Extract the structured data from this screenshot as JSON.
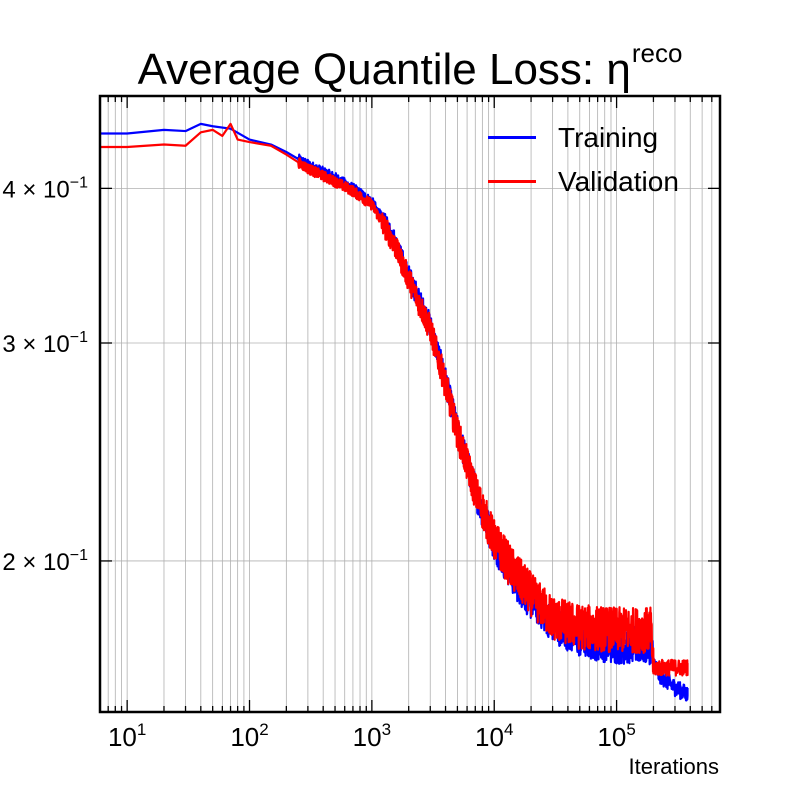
{
  "chart_data": {
    "type": "line",
    "title_main": "Average Quantile Loss: η",
    "title_sup": "reco",
    "xlabel": "Iterations",
    "ylabel": "",
    "xscale": "log",
    "yscale": "log",
    "xlim": [
      6,
      700000
    ],
    "ylim": [
      0.151,
      0.475
    ],
    "x_ticks": [
      {
        "value": 10,
        "label_base": "10",
        "label_exp": "1"
      },
      {
        "value": 100,
        "label_base": "10",
        "label_exp": "2"
      },
      {
        "value": 1000,
        "label_base": "10",
        "label_exp": "3"
      },
      {
        "value": 10000,
        "label_base": "10",
        "label_exp": "4"
      },
      {
        "value": 100000,
        "label_base": "10",
        "label_exp": "5"
      }
    ],
    "y_ticks": [
      {
        "value": 0.2,
        "label_mant": "2 × 10",
        "label_exp": "−1"
      },
      {
        "value": 0.3,
        "label_mant": "3 × 10",
        "label_exp": "−1"
      },
      {
        "value": 0.4,
        "label_mant": "4 × 10",
        "label_exp": "−1"
      }
    ],
    "grid": true,
    "legend_position": "top-right",
    "series": [
      {
        "name": "Training",
        "color": "#0000ff",
        "noise_regions": [
          {
            "from": 250,
            "to": 1200,
            "amp": 0.004
          },
          {
            "from": 1200,
            "to": 20000,
            "amp": 0.007
          },
          {
            "from": 20000,
            "to": 200000,
            "amp": 0.006
          },
          {
            "from": 200000,
            "to": 380000,
            "amp": 0.0025
          }
        ],
        "points": [
          [
            6,
            0.443
          ],
          [
            10,
            0.443
          ],
          [
            20,
            0.446
          ],
          [
            30,
            0.445
          ],
          [
            40,
            0.451
          ],
          [
            50,
            0.449
          ],
          [
            70,
            0.447
          ],
          [
            100,
            0.438
          ],
          [
            150,
            0.434
          ],
          [
            200,
            0.428
          ],
          [
            300,
            0.418
          ],
          [
            500,
            0.408
          ],
          [
            700,
            0.4
          ],
          [
            1000,
            0.39
          ],
          [
            1500,
            0.365
          ],
          [
            2000,
            0.34
          ],
          [
            3000,
            0.31
          ],
          [
            4000,
            0.28
          ],
          [
            5000,
            0.255
          ],
          [
            7000,
            0.228
          ],
          [
            10000,
            0.207
          ],
          [
            15000,
            0.193
          ],
          [
            20000,
            0.186
          ],
          [
            30000,
            0.178
          ],
          [
            50000,
            0.173
          ],
          [
            100000,
            0.171
          ],
          [
            190000,
            0.171
          ],
          [
            200000,
            0.166
          ],
          [
            220000,
            0.162
          ],
          [
            300000,
            0.158
          ],
          [
            380000,
            0.156
          ]
        ]
      },
      {
        "name": "Validation",
        "color": "#ff0000",
        "noise_regions": [
          {
            "from": 250,
            "to": 1200,
            "amp": 0.004
          },
          {
            "from": 1200,
            "to": 20000,
            "amp": 0.008
          },
          {
            "from": 20000,
            "to": 200000,
            "amp": 0.0075
          },
          {
            "from": 200000,
            "to": 380000,
            "amp": 0.0025
          }
        ],
        "points": [
          [
            6,
            0.432
          ],
          [
            10,
            0.432
          ],
          [
            20,
            0.434
          ],
          [
            30,
            0.433
          ],
          [
            40,
            0.444
          ],
          [
            50,
            0.446
          ],
          [
            60,
            0.441
          ],
          [
            70,
            0.451
          ],
          [
            80,
            0.438
          ],
          [
            100,
            0.436
          ],
          [
            150,
            0.433
          ],
          [
            200,
            0.426
          ],
          [
            300,
            0.415
          ],
          [
            500,
            0.405
          ],
          [
            700,
            0.398
          ],
          [
            1000,
            0.388
          ],
          [
            1500,
            0.362
          ],
          [
            2000,
            0.338
          ],
          [
            3000,
            0.308
          ],
          [
            4000,
            0.278
          ],
          [
            5000,
            0.254
          ],
          [
            7000,
            0.228
          ],
          [
            10000,
            0.208
          ],
          [
            15000,
            0.195
          ],
          [
            20000,
            0.188
          ],
          [
            30000,
            0.18
          ],
          [
            50000,
            0.177
          ],
          [
            100000,
            0.176
          ],
          [
            190000,
            0.176
          ],
          [
            200000,
            0.164
          ],
          [
            380000,
            0.164
          ]
        ]
      }
    ]
  }
}
